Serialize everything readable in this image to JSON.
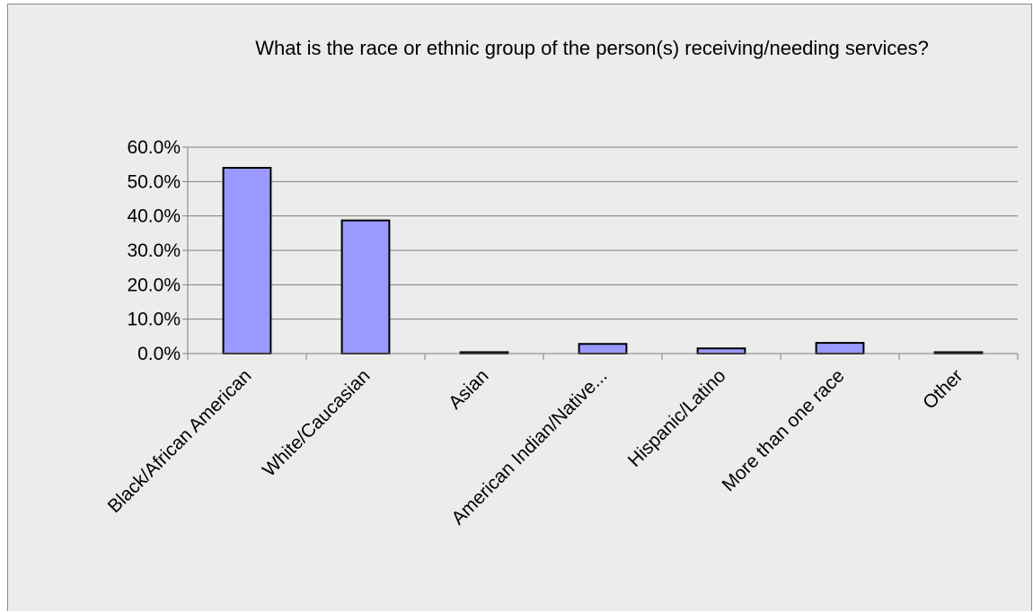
{
  "chart_data": {
    "type": "bar",
    "title": "What is the race or ethnic group of the person(s) receiving/needing services?",
    "xlabel": "",
    "ylabel": "",
    "categories": [
      "Black/African American",
      "White/Caucasian",
      "Asian",
      "American Indian/Native...",
      "Hispanic/Latino",
      "More than one race",
      "Other"
    ],
    "values": [
      54.0,
      38.7,
      0.4,
      2.8,
      1.5,
      3.1,
      0.2
    ],
    "ylim": [
      0,
      60
    ],
    "yticks": [
      "0.0%",
      "10.0%",
      "20.0%",
      "30.0%",
      "40.0%",
      "50.0%",
      "60.0%"
    ],
    "grid": true,
    "colors": {
      "bar_fill": "#9999ff",
      "bar_stroke": "#000000",
      "grid": "#7f7f7f",
      "background": "#ececec"
    }
  }
}
